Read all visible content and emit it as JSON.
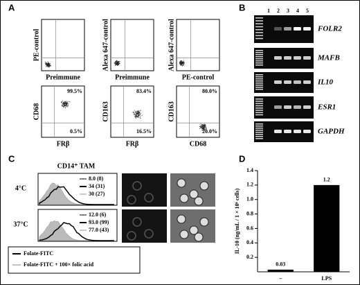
{
  "panel_a": {
    "label": "A",
    "plots": [
      {
        "ylabel": "PE-control",
        "xlabel": "Preimmune"
      },
      {
        "ylabel": "Alexa 647-control",
        "xlabel": "Preimmune"
      },
      {
        "ylabel": "Alexa 647-control",
        "xlabel": "PE-control"
      },
      {
        "ylabel": "CD68",
        "xlabel": "FRβ",
        "upper": "99.5%",
        "lower": "0.5%"
      },
      {
        "ylabel": "CD163",
        "xlabel": "FRβ",
        "upper": "83.4%",
        "lower": "16.5%"
      },
      {
        "ylabel": "CD163",
        "xlabel": "CD68",
        "upper": "80.0%",
        "lower": "20.0%"
      }
    ]
  },
  "panel_b": {
    "label": "B",
    "lanes": [
      "1",
      "2",
      "3",
      "4",
      "5"
    ],
    "genes": [
      "FOLR2",
      "MAFB",
      "IL10",
      "ESR1",
      "GAPDH"
    ]
  },
  "panel_c": {
    "label": "C",
    "title": "CD14⁺ TAM",
    "rows": [
      {
        "temp": "4°C",
        "values": [
          "8.0 (8)",
          "34 (31)",
          "30 (27)"
        ]
      },
      {
        "temp": "37°C",
        "values": [
          "12.0 (6)",
          "93.0 (99)",
          "77.0 (43)"
        ]
      }
    ],
    "legend": [
      "Folate-FITC",
      "Folate-FITC + 100× folic acid"
    ]
  },
  "panel_d": {
    "label": "D"
  },
  "chart_data": {
    "type": "bar",
    "ylabel": "IL-10 (ng/mL / 1 × 10⁶ cells)",
    "categories": [
      "–",
      "LPS"
    ],
    "values": [
      0.03,
      1.2
    ],
    "color": "#000000",
    "ylim": [
      0,
      1.4
    ],
    "yticks": [
      0.2,
      0.4,
      0.6,
      0.8,
      {
        "value": 1,
        "label": "1.0"
      },
      1.2,
      1.4
    ]
  }
}
